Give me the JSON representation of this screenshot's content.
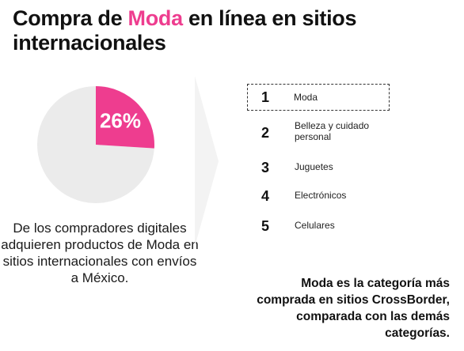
{
  "title": {
    "prefix": "Compra de ",
    "highlight": "Moda",
    "suffix": " en línea en sitios internacionales"
  },
  "chart_data": {
    "type": "pie",
    "slices": [
      {
        "label": "26%",
        "value": 26,
        "color": "#ee3d8f"
      },
      {
        "label": "",
        "value": 74,
        "color": "#ebebeb"
      }
    ],
    "description": "De los compradores digitales adquieren productos de Moda en sitios internacionales con envíos a México."
  },
  "ranking": {
    "items": [
      {
        "rank": "1",
        "label": "Moda",
        "selected": true
      },
      {
        "rank": "2",
        "label": "Belleza y cuidado personal"
      },
      {
        "rank": "3",
        "label": "Juguetes"
      },
      {
        "rank": "4",
        "label": "Electrónicos"
      },
      {
        "rank": "5",
        "label": "Celulares"
      }
    ]
  },
  "footer_note": "Moda es la categoría más comprada en sitios CrossBorder, comparada con las demás categorías.",
  "colors": {
    "accent": "#ee3d8f",
    "pie_rest": "#ebebeb",
    "chevron": "#f3f3f3"
  }
}
